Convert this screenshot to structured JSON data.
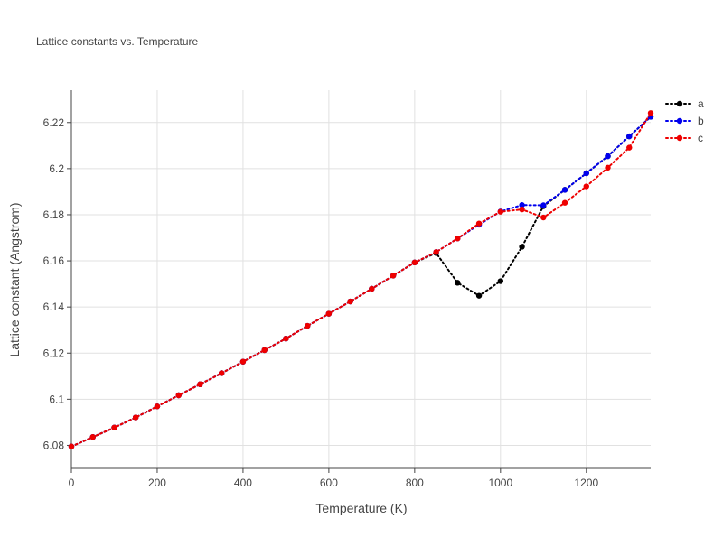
{
  "chart_data": {
    "type": "line",
    "title": "Lattice constants vs. Temperature",
    "xlabel": "Temperature (K)",
    "ylabel": "Lattice constant (Angstrom)",
    "xlim": [
      0,
      1350
    ],
    "ylim": [
      6.07,
      6.234
    ],
    "xticks": [
      0,
      200,
      400,
      600,
      800,
      1000,
      1200
    ],
    "xtick_labels": [
      "0",
      "200",
      "400",
      "600",
      "800",
      "1000",
      "1200"
    ],
    "yticks": [
      6.08,
      6.1,
      6.12,
      6.14,
      6.16,
      6.18,
      6.2,
      6.22
    ],
    "ytick_labels": [
      "6.08",
      "6.1",
      "6.12",
      "6.14",
      "6.16",
      "6.18",
      "6.2",
      "6.22"
    ],
    "grid": true,
    "legend_position": "top-right",
    "line_style": "dotted",
    "x": [
      0,
      50,
      100,
      150,
      200,
      250,
      300,
      350,
      400,
      450,
      500,
      550,
      600,
      650,
      700,
      750,
      800,
      850,
      900,
      950,
      1000,
      1050,
      1100,
      1150,
      1200,
      1250,
      1300,
      1350
    ],
    "series": [
      {
        "name": "a",
        "color": "#000000",
        "values": [
          6.0795,
          6.0836,
          6.0877,
          6.0921,
          6.0969,
          6.1017,
          6.1065,
          6.1113,
          6.1163,
          6.1213,
          6.1263,
          6.1318,
          6.1371,
          6.1424,
          6.1479,
          6.1536,
          6.1593,
          6.1634,
          6.1505,
          6.1449,
          6.1512,
          6.1661,
          6.1837,
          6.1908,
          6.198,
          6.2054,
          6.214,
          6.2225
        ]
      },
      {
        "name": "b",
        "color": "#0000ee",
        "values": [
          6.0795,
          6.0836,
          6.0877,
          6.0921,
          6.0969,
          6.1017,
          6.1065,
          6.1113,
          6.1163,
          6.1213,
          6.1263,
          6.1318,
          6.1371,
          6.1424,
          6.1479,
          6.1536,
          6.1593,
          6.1638,
          6.1697,
          6.1757,
          6.1814,
          6.1842,
          6.1841,
          6.1908,
          6.198,
          6.2054,
          6.214,
          6.2225
        ]
      },
      {
        "name": "c",
        "color": "#ee0000",
        "values": [
          6.0795,
          6.0836,
          6.0877,
          6.0921,
          6.0969,
          6.1017,
          6.1065,
          6.1113,
          6.1163,
          6.1213,
          6.1263,
          6.1318,
          6.1371,
          6.1424,
          6.1479,
          6.1536,
          6.1593,
          6.1638,
          6.1697,
          6.1762,
          6.1813,
          6.1823,
          6.1788,
          6.1852,
          6.1923,
          6.2004,
          6.2091,
          6.2241
        ]
      }
    ]
  }
}
